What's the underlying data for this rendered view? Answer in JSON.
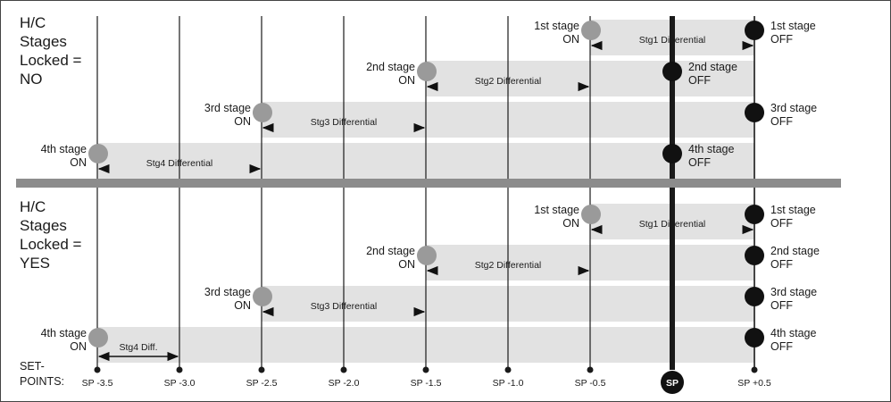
{
  "panels": [
    {
      "title": [
        "H/C",
        "Stages",
        "Locked =",
        "NO"
      ],
      "stages": [
        {
          "on": [
            "1st stage",
            "ON"
          ],
          "off": [
            "1st stage",
            "OFF"
          ],
          "diff": "Stg1  Differential",
          "on_sp": -0.5,
          "off_sp": 0.5,
          "diff_to": 0.5
        },
        {
          "on": [
            "2nd stage",
            "ON"
          ],
          "off": [
            "2nd stage",
            "OFF"
          ],
          "diff": "Stg2  Differential",
          "on_sp": -1.5,
          "off_sp": 0.0,
          "diff_to": -0.5
        },
        {
          "on": [
            "3rd stage",
            "ON"
          ],
          "off": [
            "3rd stage",
            "OFF"
          ],
          "diff": "Stg3  Differential",
          "on_sp": -2.5,
          "off_sp": 0.5,
          "diff_to": -1.5
        },
        {
          "on": [
            "4th stage",
            "ON"
          ],
          "off": [
            "4th stage",
            "OFF"
          ],
          "diff": "Stg4  Differential",
          "on_sp": -3.5,
          "off_sp": 0.0,
          "diff_to": -2.5
        }
      ]
    },
    {
      "title": [
        "H/C",
        "Stages",
        "Locked =",
        "YES"
      ],
      "stages": [
        {
          "on": [
            "1st stage",
            "ON"
          ],
          "off": [
            "1st stage",
            "OFF"
          ],
          "diff": "Stg1  Differential",
          "on_sp": -0.5,
          "off_sp": 0.5,
          "diff_to": 0.5
        },
        {
          "on": [
            "2nd stage",
            "ON"
          ],
          "off": [
            "2nd stage",
            "OFF"
          ],
          "diff": "Stg2  Differential",
          "on_sp": -1.5,
          "off_sp": 0.5,
          "diff_to": -0.5
        },
        {
          "on": [
            "3rd stage",
            "ON"
          ],
          "off": [
            "3rd stage",
            "OFF"
          ],
          "diff": "Stg3  Differential",
          "on_sp": -2.5,
          "off_sp": 0.5,
          "diff_to": -1.5
        },
        {
          "on": [
            "4th stage",
            "ON"
          ],
          "off": [
            "4th stage",
            "OFF"
          ],
          "diff": "Stg4  Diff.",
          "on_sp": -3.5,
          "off_sp": 0.5,
          "diff_to": -3.0
        }
      ]
    }
  ],
  "setpoints_label": [
    "SET-",
    "POINTS:"
  ],
  "setpoints": [
    {
      "value": -3.5,
      "label": "SP -3.5"
    },
    {
      "value": -3.0,
      "label": "SP -3.0"
    },
    {
      "value": -2.5,
      "label": "SP -2.5"
    },
    {
      "value": -2.0,
      "label": "SP -2.0"
    },
    {
      "value": -1.5,
      "label": "SP -1.5"
    },
    {
      "value": -1.0,
      "label": "SP -1.0"
    },
    {
      "value": -0.5,
      "label": "SP -0.5"
    },
    {
      "value": 0.0,
      "label": "SP"
    },
    {
      "value": 0.5,
      "label": "SP +0.5"
    }
  ],
  "colors": {
    "on_marker": "#9a9a9a",
    "off_marker": "#111111",
    "band": "#e2e2e2",
    "divider": "#8c8c8c",
    "line": "#1a1a1a"
  }
}
